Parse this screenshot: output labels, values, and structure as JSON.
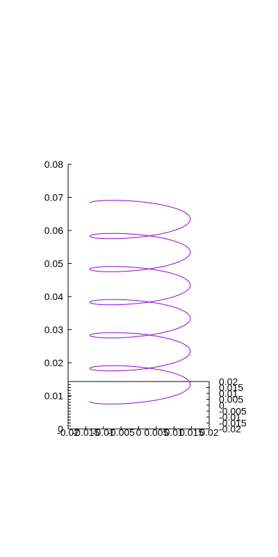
{
  "chart_data": {
    "type": "line",
    "plot3d": true,
    "title": "",
    "xlabel": "",
    "ylabel": "",
    "zlabel": "",
    "xlim": [
      -0.02,
      0.02
    ],
    "ylim": [
      -0.02,
      0.02
    ],
    "zlim": [
      0,
      0.08
    ],
    "grid": false,
    "legend": "none",
    "xticks": [
      "-0.02",
      "-0.015",
      "-0.01",
      "-0.005",
      "0",
      "0.005",
      "0.01",
      "0.015",
      "0.02"
    ],
    "yticks": [
      "0.02",
      "0.015",
      "0.01",
      "0.005",
      "0",
      "-0.005",
      "-0.01",
      "-0.015",
      "-0.02"
    ],
    "zticks": [
      "0",
      "0.01",
      "0.02",
      "0.03",
      "0.04",
      "0.05",
      "0.06",
      "0.07",
      "0.08"
    ],
    "series": [
      {
        "color": "#9400d3",
        "curve": "helix",
        "radius": 0.015,
        "turns": 6,
        "z_start": 0.01,
        "z_end": 0.07
      }
    ]
  }
}
